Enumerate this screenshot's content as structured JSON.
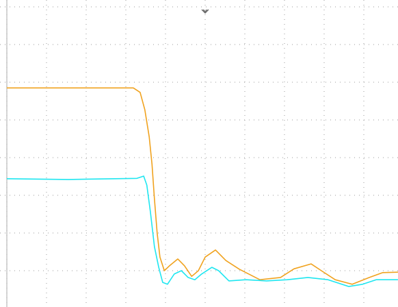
{
  "chart_data": {
    "type": "line",
    "grid": true,
    "xlim": [
      0,
      10
    ],
    "ylim": [
      0,
      8
    ],
    "xticks": [
      0,
      1,
      2,
      3,
      4,
      5,
      6,
      7,
      8,
      9
    ],
    "yticks": [
      1,
      2,
      3,
      4,
      5,
      6,
      7,
      8
    ],
    "series": [
      {
        "color": "#f0a21e",
        "x": [
          0,
          1.55,
          3.19,
          3.36,
          3.48,
          3.59,
          3.66,
          3.72,
          3.79,
          3.86,
          3.97,
          4.1,
          4.31,
          4.48,
          4.66,
          4.83,
          5.0,
          5.26,
          5.52,
          5.86,
          6.38,
          6.9,
          7.24,
          7.67,
          7.93,
          8.28,
          8.71,
          9.14,
          9.48,
          9.86
        ],
        "values": [
          5.85,
          5.85,
          5.85,
          5.73,
          5.27,
          4.55,
          3.82,
          2.91,
          2.0,
          1.36,
          1.0,
          1.13,
          1.31,
          1.13,
          0.85,
          1.0,
          1.36,
          1.55,
          1.27,
          1.04,
          0.76,
          0.82,
          1.05,
          1.18,
          1.0,
          0.76,
          0.64,
          0.82,
          0.95,
          0.96
        ]
      },
      {
        "color": "#1ee6f0",
        "x": [
          0,
          1.55,
          3.28,
          3.45,
          3.53,
          3.62,
          3.72,
          3.83,
          3.93,
          4.05,
          4.22,
          4.4,
          4.57,
          4.74,
          4.91,
          5.17,
          5.34,
          5.6,
          6.03,
          6.55,
          7.07,
          7.59,
          8.1,
          8.62,
          8.97,
          9.31,
          9.86
        ],
        "values": [
          3.44,
          3.42,
          3.45,
          3.51,
          3.27,
          2.55,
          1.64,
          1.09,
          0.69,
          0.64,
          0.91,
          1.0,
          0.82,
          0.76,
          0.91,
          1.09,
          1.0,
          0.73,
          0.76,
          0.73,
          0.76,
          0.82,
          0.76,
          0.58,
          0.64,
          0.76,
          0.76
        ]
      }
    ]
  }
}
